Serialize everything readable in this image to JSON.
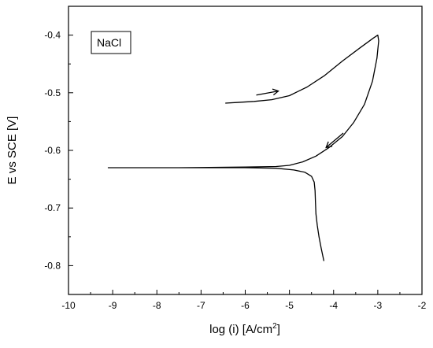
{
  "chart_data": {
    "type": "line",
    "title": "",
    "xlabel": "log (i) [A/cm",
    "xlabel_sup": "2",
    "xlabel_tail": "]",
    "ylabel": "E vs SCE [V]",
    "xlim": [
      -10,
      -2
    ],
    "ylim": [
      -0.85,
      -0.35
    ],
    "x_ticks": [
      -10,
      -9,
      -8,
      -7,
      -6,
      -5,
      -4,
      -3,
      -2
    ],
    "x_tick_labels": [
      "-10",
      "-9",
      "-8",
      "-7",
      "-6",
      "-5",
      "-4",
      "-3",
      "-2"
    ],
    "y_ticks": [
      -0.4,
      -0.5,
      -0.6,
      -0.7,
      -0.8
    ],
    "y_tick_labels": [
      "-0.4",
      "-0.5",
      "-0.6",
      "-0.7",
      "-0.8"
    ],
    "grid": false,
    "legend_placement": "top-left",
    "legend_label": "NaCl",
    "line_color": "#000000",
    "series": [
      {
        "name": "NaCl",
        "points": [
          [
            -4.22,
            -0.792
          ],
          [
            -4.28,
            -0.77
          ],
          [
            -4.33,
            -0.75
          ],
          [
            -4.37,
            -0.73
          ],
          [
            -4.4,
            -0.71
          ],
          [
            -4.41,
            -0.69
          ],
          [
            -4.42,
            -0.67
          ],
          [
            -4.44,
            -0.655
          ],
          [
            -4.5,
            -0.645
          ],
          [
            -4.65,
            -0.638
          ],
          [
            -4.9,
            -0.634
          ],
          [
            -5.3,
            -0.631
          ],
          [
            -6.0,
            -0.63
          ],
          [
            -7.5,
            -0.63
          ],
          [
            -9.1,
            -0.63
          ],
          [
            -7.5,
            -0.63
          ],
          [
            -6.0,
            -0.629
          ],
          [
            -5.3,
            -0.628
          ],
          [
            -5.0,
            -0.626
          ],
          [
            -4.7,
            -0.62
          ],
          [
            -4.4,
            -0.61
          ],
          [
            -4.1,
            -0.595
          ],
          [
            -3.8,
            -0.576
          ],
          [
            -3.55,
            -0.552
          ],
          [
            -3.3,
            -0.52
          ],
          [
            -3.12,
            -0.48
          ],
          [
            -3.02,
            -0.44
          ],
          [
            -2.98,
            -0.41
          ],
          [
            -3.0,
            -0.4
          ],
          [
            -3.1,
            -0.405
          ],
          [
            -3.4,
            -0.422
          ],
          [
            -3.8,
            -0.445
          ],
          [
            -4.2,
            -0.47
          ],
          [
            -4.6,
            -0.49
          ],
          [
            -5.0,
            -0.505
          ],
          [
            -5.4,
            -0.512
          ],
          [
            -5.8,
            -0.515
          ],
          [
            -6.2,
            -0.517
          ],
          [
            -6.45,
            -0.518
          ]
        ]
      }
    ],
    "annotations": [
      {
        "type": "arrow",
        "from": [
          -5.75,
          -0.504
        ],
        "to": [
          -5.25,
          -0.497
        ]
      },
      {
        "type": "arrow",
        "from": [
          -3.78,
          -0.57
        ],
        "to": [
          -4.17,
          -0.595
        ]
      }
    ]
  }
}
